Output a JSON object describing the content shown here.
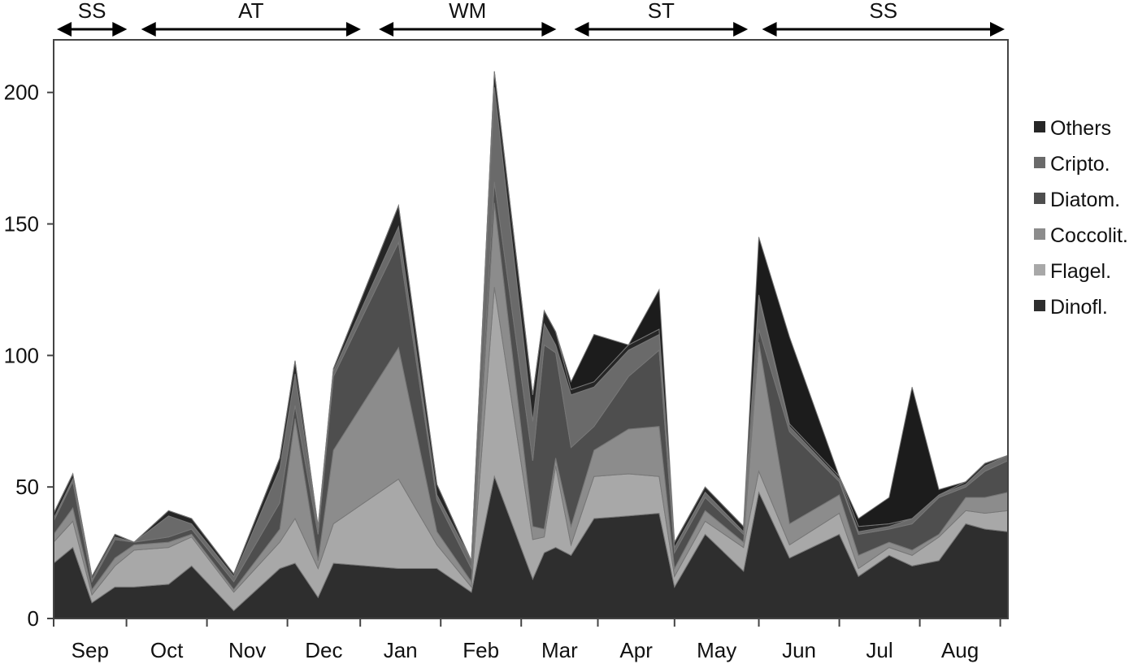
{
  "chart_data": {
    "type": "area",
    "stacked": true,
    "title": "",
    "xlabel": "",
    "ylabel": "",
    "ylim": [
      0,
      220
    ],
    "yticks": [
      "0",
      "50",
      "100",
      "150",
      "200"
    ],
    "ytick_values": [
      0,
      50,
      100,
      150,
      200
    ],
    "months": [
      "Sep",
      "Oct",
      "Nov",
      "Dec",
      "Jan",
      "Feb",
      "Mar",
      "Apr",
      "May",
      "Jun",
      "Jul",
      "Aug"
    ],
    "month_boundaries": [
      0.95,
      2.0,
      3.05,
      4.0,
      5.05,
      6.1,
      7.1,
      8.1,
      9.2,
      10.25,
      11.3,
      12.35
    ],
    "seasons": [
      {
        "label": "SS",
        "start": 0.0,
        "end": 1.0
      },
      {
        "label": "AT",
        "start": 1.1,
        "end": 4.05
      },
      {
        "label": "WM",
        "start": 4.2,
        "end": 6.6
      },
      {
        "label": "ST",
        "start": 6.75,
        "end": 9.1
      },
      {
        "label": "SS",
        "start": 9.2,
        "end": 12.45
      }
    ],
    "x": [
      0.0,
      0.25,
      0.5,
      0.8,
      1.05,
      1.5,
      1.8,
      2.35,
      2.95,
      3.15,
      3.45,
      3.65,
      4.5,
      5.0,
      5.45,
      5.75,
      6.25,
      6.4,
      6.55,
      6.75,
      7.05,
      7.5,
      7.9,
      8.1,
      8.5,
      9.0,
      9.2,
      9.6,
      10.25,
      10.5,
      10.9,
      11.2,
      11.55,
      11.9,
      12.15,
      12.45
    ],
    "series": [
      {
        "name": "Dinofl.",
        "color": "#2e2e2e",
        "values": [
          21,
          27,
          6,
          12,
          12,
          13,
          20,
          3,
          19,
          21,
          8,
          21,
          19,
          19,
          10,
          54,
          15,
          25,
          27,
          24,
          38,
          39,
          40,
          12,
          32,
          18,
          48,
          23,
          32,
          16,
          24,
          20,
          22,
          36,
          34,
          33
        ]
      },
      {
        "name": "Flagel.",
        "color": "#a8a8a8",
        "values": [
          8,
          10,
          3,
          8,
          14,
          14,
          11,
          7,
          10,
          17,
          11,
          15,
          34,
          9,
          2,
          72,
          15,
          6,
          31,
          4,
          16,
          16,
          14,
          4,
          5,
          9,
          8,
          5,
          8,
          3,
          3,
          4,
          9,
          5,
          6,
          8
        ]
      },
      {
        "name": "Coccolit.",
        "color": "#8c8c8c",
        "values": [
          3,
          5,
          2,
          3,
          2,
          2,
          1,
          1,
          5,
          38,
          3,
          28,
          50,
          5,
          2,
          32,
          5,
          3,
          3,
          7,
          10,
          17,
          19,
          3,
          4,
          2,
          49,
          8,
          7,
          5,
          2,
          2,
          1,
          5,
          6,
          7
        ]
      },
      {
        "name": "Diatom.",
        "color": "#4e4e4e",
        "values": [
          5,
          10,
          3,
          7,
          1,
          2,
          2,
          3,
          10,
          5,
          10,
          28,
          40,
          12,
          5,
          8,
          25,
          70,
          40,
          30,
          9,
          20,
          29,
          6,
          5,
          3,
          5,
          35,
          5,
          8,
          5,
          10,
          14,
          4,
          10,
          12
        ]
      },
      {
        "name": "Cripto.",
        "color": "#6a6a6a",
        "values": [
          1,
          1,
          1,
          1,
          0,
          8,
          2,
          2,
          13,
          12,
          2,
          2,
          6,
          2,
          3,
          36,
          15,
          8,
          3,
          20,
          15,
          10,
          6,
          2,
          2,
          1,
          12,
          2,
          1,
          1,
          1,
          2,
          1,
          1,
          2,
          2
        ]
      },
      {
        "name": "Others",
        "color": "#262626",
        "values": [
          2,
          2,
          1,
          1,
          0,
          2,
          2,
          1,
          4,
          5,
          1,
          1,
          8,
          4,
          0,
          6,
          10,
          5,
          5,
          2,
          2,
          2,
          2,
          2,
          2,
          2,
          1,
          1,
          1,
          2,
          1,
          0,
          0,
          1,
          1,
          0
        ]
      },
      {
        "name": "Others",
        "color": "#1c1c1c",
        "values": [
          0,
          0,
          0,
          0,
          0,
          0,
          0,
          0,
          0,
          0,
          0,
          0,
          0,
          0,
          0,
          0,
          0,
          0,
          0,
          3,
          18,
          0,
          15,
          0,
          0,
          0,
          22,
          33,
          0,
          3,
          10,
          50,
          2,
          0,
          0,
          0
        ]
      }
    ],
    "legend": {
      "placement": "right",
      "entries": [
        {
          "label": "Others",
          "color": "#262626"
        },
        {
          "label": "Cripto.",
          "color": "#6a6a6a"
        },
        {
          "label": "Diatom.",
          "color": "#4e4e4e"
        },
        {
          "label": "Coccolit.",
          "color": "#8c8c8c"
        },
        {
          "label": "Flagel.",
          "color": "#a8a8a8"
        },
        {
          "label": "Dinofl.",
          "color": "#2e2e2e"
        }
      ]
    }
  }
}
